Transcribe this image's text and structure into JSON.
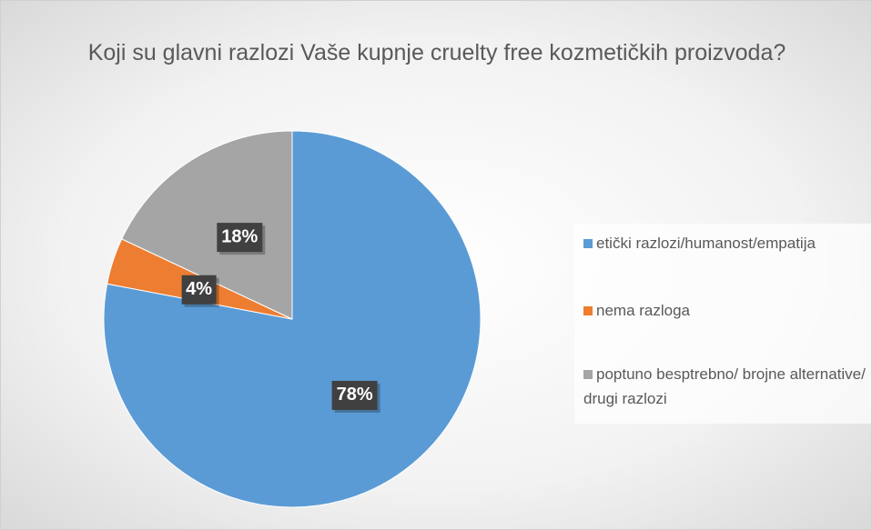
{
  "chart_data": {
    "type": "pie",
    "title": "Koji su glavni razlozi Vaše kupnje cruelty free kozmetičkih proizvoda?",
    "categories": [
      "etički razlozi/humanost/empatija",
      "nema razloga",
      "poptuno besptrebno/ brojne alternative/ drugi razlozi"
    ],
    "values": [
      78,
      4,
      18
    ],
    "value_labels": [
      "78%",
      "4%",
      "18%"
    ],
    "colors": [
      "#5b9bd5",
      "#ed7d31",
      "#a5a5a5"
    ],
    "legend": "right"
  }
}
